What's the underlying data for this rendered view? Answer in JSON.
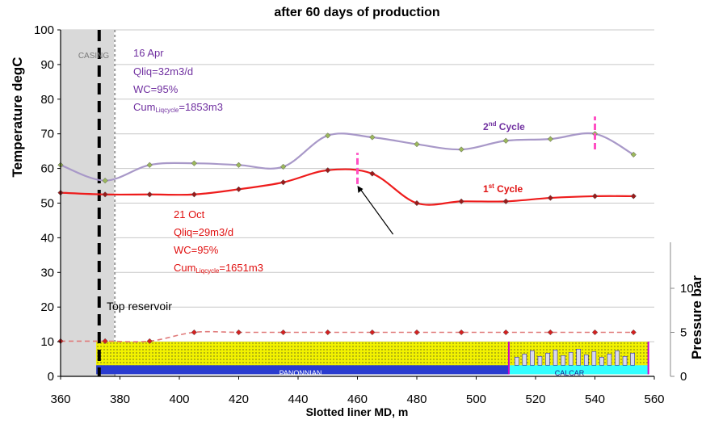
{
  "chart_data": {
    "type": "line",
    "title": "after 60 days of production",
    "xlabel": "Slotted liner MD, m",
    "ylabel": "Temperature degC",
    "y2label": "Pressure bar",
    "xlim": [
      360,
      560
    ],
    "ylim": [
      0,
      100
    ],
    "xticks": [
      360,
      380,
      400,
      420,
      440,
      460,
      480,
      500,
      520,
      540,
      560
    ],
    "yticks": [
      0,
      10,
      20,
      30,
      40,
      50,
      60,
      70,
      80,
      90,
      100
    ],
    "y2ticks": [
      0,
      5,
      10
    ],
    "grid": true,
    "series": [
      {
        "name": "2nd Cycle",
        "color": "#a898c8",
        "marker_color": "#9cb85c",
        "x": [
          360,
          375,
          390,
          405,
          420,
          435,
          450,
          465,
          480,
          495,
          510,
          525,
          540,
          553
        ],
        "y": [
          61,
          56.5,
          61,
          61.5,
          61,
          60.5,
          69.5,
          69,
          67,
          65.5,
          68,
          68.5,
          70,
          64
        ]
      },
      {
        "name": "1st Cycle",
        "color": "#ee1c1c",
        "marker_color": "#9b1a1a",
        "x": [
          360,
          375,
          390,
          405,
          420,
          435,
          450,
          465,
          480,
          495,
          510,
          525,
          540,
          553
        ],
        "y": [
          53,
          52.5,
          52.5,
          52.5,
          54,
          56,
          59.5,
          58.5,
          50,
          50.5,
          50.5,
          51.5,
          52,
          52
        ]
      },
      {
        "name": "Pressure",
        "axis": "right",
        "color": "#e07a7a",
        "marker_color": "#d42020",
        "x": [
          360,
          375,
          390,
          405,
          420,
          435,
          450,
          465,
          480,
          495,
          510,
          525,
          540,
          553
        ],
        "y": [
          4,
          4,
          4,
          5,
          5,
          5,
          5,
          5,
          5,
          5,
          5,
          5,
          5,
          5
        ]
      }
    ],
    "legend_labels": {
      "cycle2": {
        "prefix": "2",
        "sup": "nd",
        "suffix": " Cycle"
      },
      "cycle1": {
        "prefix": "1",
        "sup": "st",
        "suffix": " Cycle"
      }
    },
    "annotations": {
      "apr": {
        "date": "16 Apr",
        "qliq": "Qliq=32m3/d",
        "wc": "WC=95%",
        "cum_prefix": "Cum",
        "cum_sub": "Liqcycle",
        "cum_value": "=1853m3",
        "color": "#7030a0"
      },
      "oct": {
        "date": "21 Oct",
        "qliq": "Qliq=29m3/d",
        "wc": "WC=95%",
        "cum_prefix": "Cum",
        "cum_sub": "Liqcycle",
        "cum_value": "=1651m3",
        "color": "#e01010"
      },
      "casing": "CASING",
      "top_reservoir": "Top reservoir",
      "top_reservoir_x": 373,
      "casing_range": [
        360,
        378
      ],
      "panonnian": "PANONNIAN",
      "calcar": "CALCAR",
      "formation_boundary_x": 511
    },
    "colors": {
      "casing_fill": "#d9d9d9",
      "layer_yellow": "#f2f200",
      "layer_blue": "#2a3ccf",
      "layer_cyan": "#33ffff",
      "marker_pink": "#ff4fc3"
    }
  }
}
